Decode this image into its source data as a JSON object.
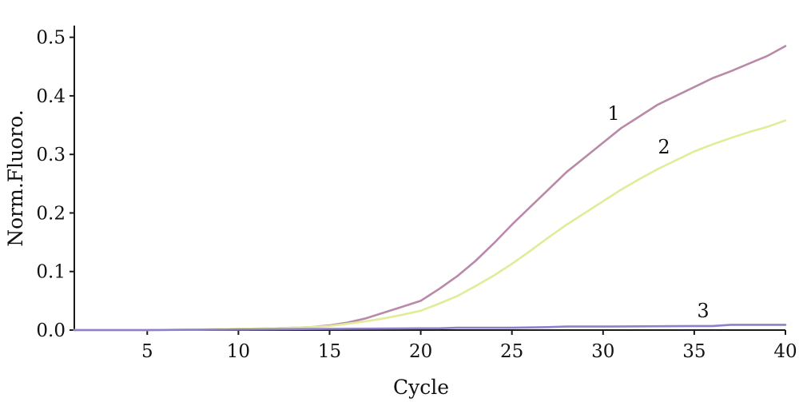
{
  "chart_data": {
    "type": "line",
    "title": "",
    "xlabel": "Cycle",
    "ylabel": "Norm.Fluoro.",
    "xlim": [
      1,
      40
    ],
    "ylim": [
      0,
      0.52
    ],
    "xticks": [
      5,
      10,
      15,
      20,
      25,
      30,
      35,
      40
    ],
    "xtick_labels": [
      "5",
      "10",
      "15",
      "20",
      "25",
      "30",
      "35",
      "40"
    ],
    "yticks": [
      0.0,
      0.1,
      0.2,
      0.3,
      0.4,
      0.5
    ],
    "ytick_labels": [
      "0.0",
      "0.1",
      "0.2",
      "0.3",
      "0.4",
      "0.5"
    ],
    "grid": false,
    "legend": "none",
    "series": [
      {
        "name": "1",
        "color": "#b98aa8",
        "x": [
          1,
          5,
          8,
          10,
          12,
          14,
          15,
          16,
          17,
          18,
          19,
          20,
          21,
          22,
          23,
          24,
          25,
          26,
          27,
          28,
          29,
          30,
          31,
          32,
          33,
          34,
          35,
          36,
          37,
          38,
          39,
          40
        ],
        "values": [
          0.0,
          0.0,
          0.001,
          0.002,
          0.003,
          0.005,
          0.008,
          0.013,
          0.02,
          0.03,
          0.04,
          0.05,
          0.07,
          0.092,
          0.118,
          0.148,
          0.18,
          0.21,
          0.24,
          0.27,
          0.295,
          0.32,
          0.345,
          0.365,
          0.385,
          0.4,
          0.415,
          0.43,
          0.442,
          0.455,
          0.468,
          0.485
        ]
      },
      {
        "name": "2",
        "color": "#e2eb98",
        "x": [
          1,
          5,
          8,
          10,
          12,
          14,
          15,
          16,
          17,
          18,
          19,
          20,
          21,
          22,
          23,
          24,
          25,
          26,
          27,
          28,
          29,
          30,
          31,
          32,
          33,
          34,
          35,
          36,
          37,
          38,
          39,
          40
        ],
        "values": [
          0.0,
          0.0,
          0.001,
          0.002,
          0.003,
          0.005,
          0.007,
          0.011,
          0.015,
          0.02,
          0.026,
          0.033,
          0.045,
          0.058,
          0.075,
          0.093,
          0.113,
          0.135,
          0.158,
          0.18,
          0.2,
          0.22,
          0.24,
          0.258,
          0.275,
          0.29,
          0.305,
          0.317,
          0.328,
          0.338,
          0.347,
          0.358
        ]
      },
      {
        "name": "3",
        "color": "#8f80c9",
        "x": [
          1,
          5,
          10,
          15,
          20,
          21,
          22,
          25,
          27,
          28,
          30,
          35,
          36,
          37,
          40
        ],
        "values": [
          0.0,
          0.0,
          0.001,
          0.002,
          0.003,
          0.003,
          0.004,
          0.004,
          0.005,
          0.006,
          0.006,
          0.007,
          0.007,
          0.009,
          0.009
        ]
      }
    ]
  }
}
